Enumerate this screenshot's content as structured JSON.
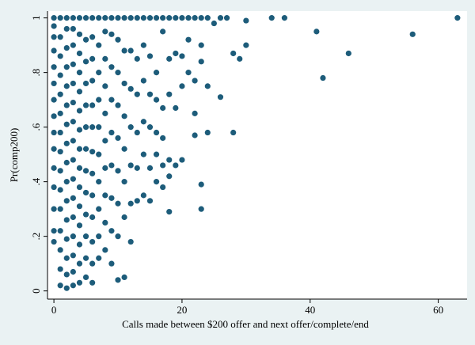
{
  "chart_data": {
    "type": "scatter",
    "xlabel": "Calls made between $200 offer and next offer/complete/end",
    "ylabel": "Pr(comp200)",
    "xlim": [
      -1,
      64.5
    ],
    "ylim": [
      -0.03,
      1.025
    ],
    "xticks": [
      0,
      20,
      40,
      60
    ],
    "yticks": [
      0,
      {
        "value": 0.2,
        "label": ".2"
      },
      {
        "value": 0.4,
        "label": ".4"
      },
      {
        "value": 0.6,
        "label": ".6"
      },
      {
        "value": 0.8,
        "label": ".8"
      },
      1
    ],
    "color": "#1d5c7a",
    "x": [
      0,
      0,
      0,
      0,
      0,
      0,
      0,
      0,
      0,
      0,
      0,
      0,
      0,
      0,
      0,
      1,
      1,
      1,
      1,
      1,
      1,
      1,
      1,
      1,
      1,
      1,
      1,
      1,
      1,
      1,
      2,
      2,
      2,
      2,
      2,
      2,
      2,
      2,
      2,
      2,
      2,
      2,
      2,
      2,
      2,
      2,
      3,
      3,
      3,
      3,
      3,
      3,
      3,
      3,
      3,
      3,
      3,
      3,
      3,
      3,
      3,
      3,
      4,
      4,
      4,
      4,
      4,
      4,
      4,
      4,
      4,
      4,
      4,
      4,
      4,
      4,
      4,
      5,
      5,
      5,
      5,
      5,
      5,
      5,
      5,
      5,
      5,
      5,
      5,
      5,
      6,
      6,
      6,
      6,
      6,
      6,
      6,
      6,
      6,
      6,
      6,
      6,
      6,
      7,
      7,
      7,
      7,
      7,
      7,
      7,
      7,
      7,
      7,
      8,
      8,
      8,
      8,
      8,
      8,
      8,
      8,
      8,
      8,
      9,
      9,
      9,
      9,
      9,
      9,
      9,
      9,
      9,
      10,
      10,
      10,
      10,
      10,
      10,
      10,
      10,
      10,
      11,
      11,
      11,
      11,
      11,
      11,
      11,
      11,
      12,
      12,
      12,
      12,
      12,
      12,
      12,
      13,
      13,
      13,
      13,
      13,
      13,
      14,
      14,
      14,
      14,
      14,
      14,
      15,
      15,
      15,
      15,
      15,
      15,
      16,
      16,
      16,
      16,
      16,
      16,
      17,
      17,
      17,
      17,
      17,
      17,
      18,
      18,
      18,
      18,
      18,
      18,
      19,
      19,
      19,
      19,
      20,
      20,
      20,
      20,
      21,
      21,
      21,
      22,
      22,
      22,
      22,
      23,
      23,
      23,
      23,
      23,
      24,
      24,
      24,
      25,
      26,
      26,
      27,
      28,
      28,
      29,
      30,
      30,
      34,
      36,
      41,
      42,
      46,
      56,
      63
    ],
    "values": [
      0.18,
      0.22,
      0.3,
      0.38,
      0.45,
      0.52,
      0.58,
      0.64,
      0.7,
      0.76,
      0.82,
      0.88,
      0.93,
      0.97,
      1,
      0.02,
      0.08,
      0.15,
      0.22,
      0.3,
      0.37,
      0.44,
      0.51,
      0.58,
      0.65,
      0.72,
      0.79,
      0.86,
      0.93,
      1,
      0.01,
      0.06,
      0.12,
      0.19,
      0.26,
      0.33,
      0.4,
      0.47,
      0.54,
      0.61,
      0.68,
      0.75,
      0.82,
      0.89,
      0.96,
      1,
      0.02,
      0.07,
      0.13,
      0.2,
      0.27,
      0.34,
      0.41,
      0.48,
      0.55,
      0.62,
      0.69,
      0.76,
      0.83,
      0.9,
      0.96,
      1,
      0.03,
      0.1,
      0.17,
      0.24,
      0.31,
      0.38,
      0.45,
      0.52,
      0.59,
      0.66,
      0.73,
      0.8,
      0.87,
      0.94,
      1,
      0.05,
      0.12,
      0.2,
      0.28,
      0.36,
      0.44,
      0.52,
      0.6,
      0.68,
      0.76,
      0.84,
      0.92,
      1,
      0.03,
      0.1,
      0.18,
      0.27,
      0.35,
      0.43,
      0.51,
      0.6,
      0.68,
      0.77,
      0.85,
      0.93,
      1,
      0.12,
      0.2,
      0.3,
      0.4,
      0.5,
      0.6,
      0.7,
      0.8,
      0.9,
      1,
      0.15,
      0.25,
      0.35,
      0.45,
      0.55,
      0.65,
      0.75,
      0.85,
      0.95,
      1,
      0.1,
      0.22,
      0.34,
      0.46,
      0.58,
      0.7,
      0.82,
      0.94,
      1,
      0.04,
      0.2,
      0.32,
      0.44,
      0.56,
      0.68,
      0.8,
      0.92,
      1,
      0.05,
      0.27,
      0.4,
      0.52,
      0.64,
      0.76,
      0.88,
      1,
      0.18,
      0.32,
      0.46,
      0.6,
      0.74,
      0.88,
      1,
      0.33,
      0.45,
      0.58,
      0.72,
      0.85,
      1,
      0.35,
      0.5,
      0.62,
      0.77,
      0.9,
      1,
      0.33,
      0.45,
      0.6,
      0.72,
      0.86,
      1,
      0.4,
      0.5,
      0.58,
      0.7,
      0.8,
      1,
      0.38,
      0.46,
      0.56,
      0.67,
      0.95,
      1,
      0.29,
      0.42,
      0.48,
      0.72,
      0.85,
      1,
      0.46,
      0.67,
      0.87,
      1,
      0.48,
      0.75,
      0.86,
      1,
      0.8,
      0.92,
      1,
      0.57,
      0.65,
      0.77,
      1,
      0.3,
      0.39,
      0.84,
      0.9,
      1,
      0.58,
      0.75,
      1,
      0.98,
      0.71,
      1,
      1,
      0.58,
      0.87,
      0.85,
      0.9,
      0.99,
      1,
      1,
      0.95,
      0.78,
      0.87,
      0.94,
      1
    ]
  }
}
